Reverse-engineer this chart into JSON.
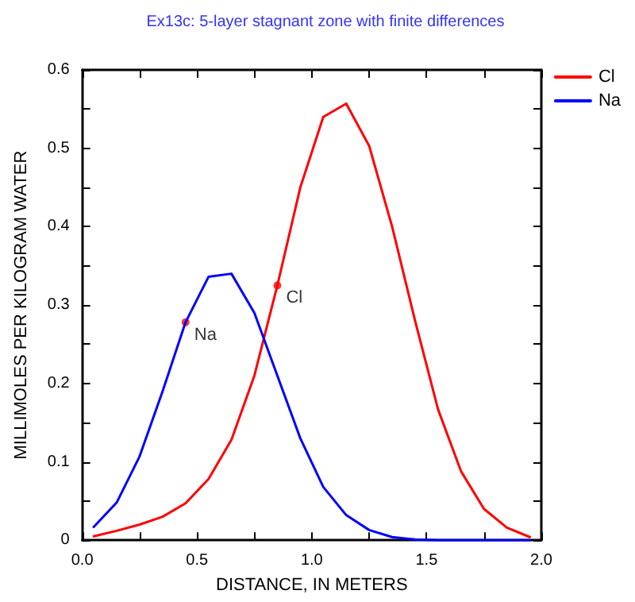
{
  "chart_data": {
    "type": "line",
    "title": "Ex13c: 5-layer stagnant zone with finite differences",
    "xlabel": "DISTANCE, IN METERS",
    "ylabel": "MILLIMOLES PER KILOGRAM WATER",
    "x": [
      0.05,
      0.15,
      0.25,
      0.35,
      0.45,
      0.55,
      0.65,
      0.75,
      0.85,
      0.95,
      1.05,
      1.15,
      1.25,
      1.35,
      1.45,
      1.55,
      1.65,
      1.75,
      1.85,
      1.95
    ],
    "series": [
      {
        "name": "Cl",
        "color": "#ff0000",
        "values": [
          0.005,
          0.012,
          0.02,
          0.03,
          0.047,
          0.078,
          0.128,
          0.21,
          0.325,
          0.45,
          0.54,
          0.557,
          0.503,
          0.4,
          0.28,
          0.167,
          0.088,
          0.04,
          0.016,
          0.004
        ]
      },
      {
        "name": "Na",
        "color": "#0000ff",
        "values": [
          0.017,
          0.048,
          0.107,
          0.19,
          0.278,
          0.336,
          0.34,
          0.29,
          0.21,
          0.13,
          0.068,
          0.032,
          0.013,
          0.004,
          0.001,
          0,
          0,
          0,
          0,
          0
        ]
      }
    ],
    "annotations": [
      {
        "text": "Na",
        "x": 0.45,
        "y": 0.278
      },
      {
        "text": "Cl",
        "x": 0.85,
        "y": 0.325
      }
    ],
    "xlim": [
      0,
      2
    ],
    "ylim": [
      0,
      0.6
    ],
    "xticks": [
      {
        "value": 0,
        "label": "0.0"
      },
      {
        "value": 0.25,
        "label": null
      },
      0.5,
      {
        "value": 0.75,
        "label": null
      },
      {
        "value": 1,
        "label": "1.0"
      },
      {
        "value": 1.25,
        "label": null
      },
      1.5,
      {
        "value": 1.75,
        "label": null
      },
      {
        "value": 2,
        "label": "2.0"
      }
    ],
    "yticks": [
      0,
      {
        "value": 0.05,
        "label": null
      },
      0.1,
      {
        "value": 0.15,
        "label": null
      },
      0.2,
      {
        "value": 0.25,
        "label": null
      },
      0.3,
      {
        "value": 0.35,
        "label": null
      },
      0.4,
      {
        "value": 0.45,
        "label": null
      },
      0.5,
      {
        "value": 0.55,
        "label": null
      },
      0.6
    ],
    "grid": false,
    "legend": "top right",
    "marker": "none",
    "line_style": "solid"
  }
}
